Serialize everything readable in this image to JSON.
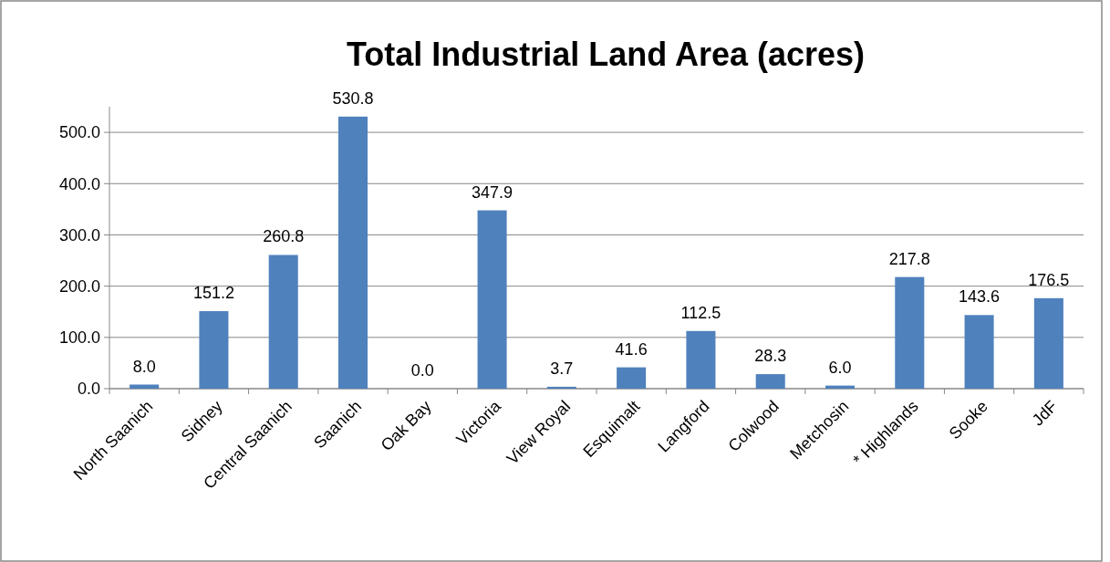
{
  "chart_data": {
    "type": "bar",
    "title": "Total Industrial Land Area (acres)",
    "categories": [
      "North Saanich",
      "Sidney",
      "Central Saanich",
      "Saanich",
      "Oak Bay",
      "Victoria",
      "View Royal",
      "Esquimalt",
      "Langford",
      "Colwood",
      "Metchosin",
      "* Highlands",
      "Sooke",
      "JdF"
    ],
    "values": [
      8.0,
      151.2,
      260.8,
      530.8,
      0.0,
      347.9,
      3.7,
      41.6,
      112.5,
      28.3,
      6.0,
      217.8,
      143.6,
      176.5
    ],
    "value_labels": [
      "8.0",
      "151.2",
      "260.8",
      "530.8",
      "0.0",
      "347.9",
      "3.7",
      "41.6",
      "112.5",
      "28.3",
      "6.0",
      "217.8",
      "143.6",
      "176.5"
    ],
    "color": "#4f81bd",
    "ylim": [
      0,
      550
    ],
    "yticks": [
      {
        "value": 0,
        "label": "0.0"
      },
      {
        "value": 100,
        "label": "100.0"
      },
      {
        "value": 200,
        "label": "200.0"
      },
      {
        "value": 300,
        "label": "300.0"
      },
      {
        "value": 400,
        "label": "400.0"
      },
      {
        "value": 500,
        "label": "500.0"
      }
    ],
    "grid": "y"
  }
}
